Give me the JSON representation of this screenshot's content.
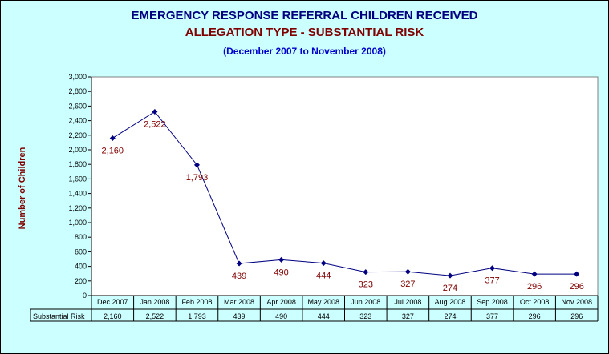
{
  "title": "EMERGENCY RESPONSE REFERRAL CHILDREN RECEIVED",
  "subtitle": "ALLEGATION TYPE - SUBSTANTIAL RISK",
  "period": "(December 2007 to November 2008)",
  "colors": {
    "background": "#CCFFFF",
    "plot_area": "#FFFFFF",
    "line": "#000080",
    "marker": "#000080",
    "data_label": "#800000",
    "title": "#000080",
    "subtitle": "#800000",
    "period": "#0000CC"
  },
  "chart_data": {
    "type": "line",
    "title": "EMERGENCY RESPONSE REFERRAL CHILDREN RECEIVED",
    "subtitle": "ALLEGATION TYPE - SUBSTANTIAL RISK",
    "xlabel": "",
    "ylabel": "Number of Children",
    "ylim": [
      0,
      3000
    ],
    "ytick_step": 200,
    "ytick_labels": [
      "0",
      "200",
      "400",
      "600",
      "800",
      "1,000",
      "1,200",
      "1,400",
      "1,600",
      "1,800",
      "2,000",
      "2,200",
      "2,400",
      "2,600",
      "2,800",
      "3,000"
    ],
    "categories": [
      "Dec 2007",
      "Jan 2008",
      "Feb 2008",
      "Mar 2008",
      "Apr 2008",
      "May 2008",
      "Jun 2008",
      "Jul 2008",
      "Aug 2008",
      "Sep 2008",
      "Oct 2008",
      "Nov 2008"
    ],
    "series": [
      {
        "name": "Substantial Risk",
        "values": [
          2160,
          2522,
          1793,
          439,
          490,
          444,
          323,
          327,
          274,
          377,
          296,
          296
        ],
        "labels": [
          "2,160",
          "2,522",
          "1,793",
          "439",
          "490",
          "444",
          "323",
          "327",
          "274",
          "377",
          "296",
          "296"
        ]
      }
    ],
    "grid": false,
    "data_table": true,
    "legend": "none"
  }
}
